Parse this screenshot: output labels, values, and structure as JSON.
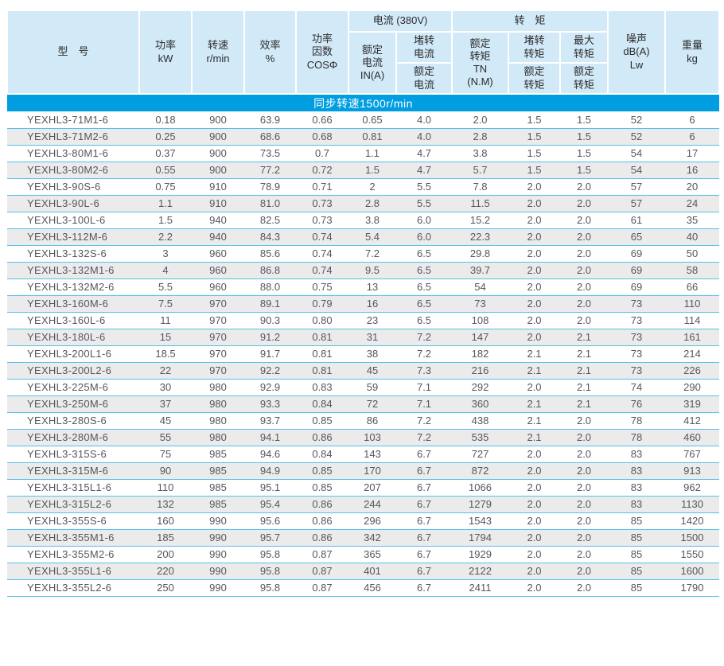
{
  "table": {
    "banner": "同步转速1500r/min",
    "header": {
      "model": "型　号",
      "power": "功率\nkW",
      "speed": "转速\nr/min",
      "efficiency": "效率\n%",
      "power_factor": "功率\n因数\nCOSΦ",
      "current_group": "电流 (380V)",
      "rated_current": "额定\n电流\nIN(A)",
      "locked_current_num": "堵转\n电流",
      "locked_current_den": "额定\n电流",
      "torque_group": "转　矩",
      "rated_torque": "额定\n转矩\nTN\n(N.M)",
      "locked_torque_num": "堵转\n转矩",
      "locked_torque_den": "额定\n转矩",
      "max_torque_num": "最大\n转矩",
      "max_torque_den": "额定\n转矩",
      "noise": "噪声\ndB(A)\nLw",
      "weight": "重量\nkg"
    },
    "colors": {
      "header_bg": "#d2e9f7",
      "banner_bg": "#009ee0",
      "row_stripe": "#ebebeb",
      "row_line": "#55c1ea"
    },
    "rows": [
      [
        "YEXHL3-71M1-6",
        "0.18",
        "900",
        "63.9",
        "0.66",
        "0.65",
        "4.0",
        "2.0",
        "1.5",
        "1.5",
        "52",
        "6"
      ],
      [
        "YEXHL3-71M2-6",
        "0.25",
        "900",
        "68.6",
        "0.68",
        "0.81",
        "4.0",
        "2.8",
        "1.5",
        "1.5",
        "52",
        "6"
      ],
      [
        "YEXHL3-80M1-6",
        "0.37",
        "900",
        "73.5",
        "0.7",
        "1.1",
        "4.7",
        "3.8",
        "1.5",
        "1.5",
        "54",
        "17"
      ],
      [
        "YEXHL3-80M2-6",
        "0.55",
        "900",
        "77.2",
        "0.72",
        "1.5",
        "4.7",
        "5.7",
        "1.5",
        "1.5",
        "54",
        "16"
      ],
      [
        "YEXHL3-90S-6",
        "0.75",
        "910",
        "78.9",
        "0.71",
        "2",
        "5.5",
        "7.8",
        "2.0",
        "2.0",
        "57",
        "20"
      ],
      [
        "YEXHL3-90L-6",
        "1.1",
        "910",
        "81.0",
        "0.73",
        "2.8",
        "5.5",
        "11.5",
        "2.0",
        "2.0",
        "57",
        "24"
      ],
      [
        "YEXHL3-100L-6",
        "1.5",
        "940",
        "82.5",
        "0.73",
        "3.8",
        "6.0",
        "15.2",
        "2.0",
        "2.0",
        "61",
        "35"
      ],
      [
        "YEXHL3-112M-6",
        "2.2",
        "940",
        "84.3",
        "0.74",
        "5.4",
        "6.0",
        "22.3",
        "2.0",
        "2.0",
        "65",
        "40"
      ],
      [
        "YEXHL3-132S-6",
        "3",
        "960",
        "85.6",
        "0.74",
        "7.2",
        "6.5",
        "29.8",
        "2.0",
        "2.0",
        "69",
        "50"
      ],
      [
        "YEXHL3-132M1-6",
        "4",
        "960",
        "86.8",
        "0.74",
        "9.5",
        "6.5",
        "39.7",
        "2.0",
        "2.0",
        "69",
        "58"
      ],
      [
        "YEXHL3-132M2-6",
        "5.5",
        "960",
        "88.0",
        "0.75",
        "13",
        "6.5",
        "54",
        "2.0",
        "2.0",
        "69",
        "66"
      ],
      [
        "YEXHL3-160M-6",
        "7.5",
        "970",
        "89.1",
        "0.79",
        "16",
        "6.5",
        "73",
        "2.0",
        "2.0",
        "73",
        "110"
      ],
      [
        "YEXHL3-160L-6",
        "11",
        "970",
        "90.3",
        "0.80",
        "23",
        "6.5",
        "108",
        "2.0",
        "2.0",
        "73",
        "114"
      ],
      [
        "YEXHL3-180L-6",
        "15",
        "970",
        "91.2",
        "0.81",
        "31",
        "7.2",
        "147",
        "2.0",
        "2.1",
        "73",
        "161"
      ],
      [
        "YEXHL3-200L1-6",
        "18.5",
        "970",
        "91.7",
        "0.81",
        "38",
        "7.2",
        "182",
        "2.1",
        "2.1",
        "73",
        "214"
      ],
      [
        "YEXHL3-200L2-6",
        "22",
        "970",
        "92.2",
        "0.81",
        "45",
        "7.3",
        "216",
        "2.1",
        "2.1",
        "73",
        "226"
      ],
      [
        "YEXHL3-225M-6",
        "30",
        "980",
        "92.9",
        "0.83",
        "59",
        "7.1",
        "292",
        "2.0",
        "2.1",
        "74",
        "290"
      ],
      [
        "YEXHL3-250M-6",
        "37",
        "980",
        "93.3",
        "0.84",
        "72",
        "7.1",
        "360",
        "2.1",
        "2.1",
        "76",
        "319"
      ],
      [
        "YEXHL3-280S-6",
        "45",
        "980",
        "93.7",
        "0.85",
        "86",
        "7.2",
        "438",
        "2.1",
        "2.0",
        "78",
        "412"
      ],
      [
        "YEXHL3-280M-6",
        "55",
        "980",
        "94.1",
        "0.86",
        "103",
        "7.2",
        "535",
        "2.1",
        "2.0",
        "78",
        "460"
      ],
      [
        "YEXHL3-315S-6",
        "75",
        "985",
        "94.6",
        "0.84",
        "143",
        "6.7",
        "727",
        "2.0",
        "2.0",
        "83",
        "767"
      ],
      [
        "YEXHL3-315M-6",
        "90",
        "985",
        "94.9",
        "0.85",
        "170",
        "6.7",
        "872",
        "2.0",
        "2.0",
        "83",
        "913"
      ],
      [
        "YEXHL3-315L1-6",
        "110",
        "985",
        "95.1",
        "0.85",
        "207",
        "6.7",
        "1066",
        "2.0",
        "2.0",
        "83",
        "962"
      ],
      [
        "YEXHL3-315L2-6",
        "132",
        "985",
        "95.4",
        "0.86",
        "244",
        "6.7",
        "1279",
        "2.0",
        "2.0",
        "83",
        "1130"
      ],
      [
        "YEXHL3-355S-6",
        "160",
        "990",
        "95.6",
        "0.86",
        "296",
        "6.7",
        "1543",
        "2.0",
        "2.0",
        "85",
        "1420"
      ],
      [
        "YEXHL3-355M1-6",
        "185",
        "990",
        "95.7",
        "0.86",
        "342",
        "6.7",
        "1794",
        "2.0",
        "2.0",
        "85",
        "1500"
      ],
      [
        "YEXHL3-355M2-6",
        "200",
        "990",
        "95.8",
        "0.87",
        "365",
        "6.7",
        "1929",
        "2.0",
        "2.0",
        "85",
        "1550"
      ],
      [
        "YEXHL3-355L1-6",
        "220",
        "990",
        "95.8",
        "0.87",
        "401",
        "6.7",
        "2122",
        "2.0",
        "2.0",
        "85",
        "1600"
      ],
      [
        "YEXHL3-355L2-6",
        "250",
        "990",
        "95.8",
        "0.87",
        "456",
        "6.7",
        "2411",
        "2.0",
        "2.0",
        "85",
        "1790"
      ]
    ]
  }
}
